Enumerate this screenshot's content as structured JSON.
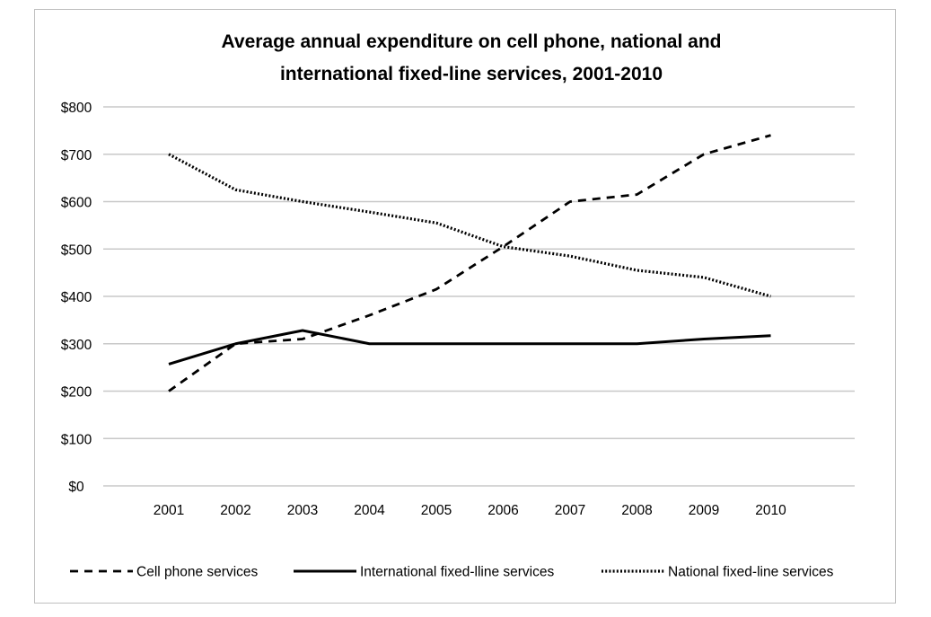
{
  "chart_data": {
    "type": "line",
    "title": "Average annual expenditure on cell phone, national and international fixed-line services, 2001-2010",
    "title_lines": [
      "Average annual expenditure on cell phone, national and",
      "international fixed-line services, 2001-2010"
    ],
    "xlabel": "",
    "ylabel": "",
    "categories": [
      "2001",
      "2002",
      "2003",
      "2004",
      "2005",
      "2006",
      "2007",
      "2008",
      "2009",
      "2010"
    ],
    "ylim": [
      0,
      800
    ],
    "yticks": [
      0,
      100,
      200,
      300,
      400,
      500,
      600,
      700,
      800
    ],
    "ytick_labels": [
      "$0",
      "$100",
      "$200",
      "$300",
      "$400",
      "$500",
      "$600",
      "$700",
      "$800"
    ],
    "grid": true,
    "legend_position": "bottom",
    "series": [
      {
        "name": "Cell phone services",
        "style": "dashed",
        "color": "#000000",
        "values": [
          200,
          300,
          310,
          360,
          415,
          505,
          600,
          615,
          700,
          740
        ]
      },
      {
        "name": "International fixed-lline services",
        "style": "solid",
        "color": "#000000",
        "values": [
          257,
          300,
          328,
          300,
          300,
          300,
          300,
          300,
          310,
          317
        ]
      },
      {
        "name": "National fixed-line services",
        "style": "dotted",
        "color": "#000000",
        "values": [
          700,
          625,
          600,
          578,
          555,
          505,
          485,
          455,
          440,
          400
        ]
      }
    ]
  }
}
